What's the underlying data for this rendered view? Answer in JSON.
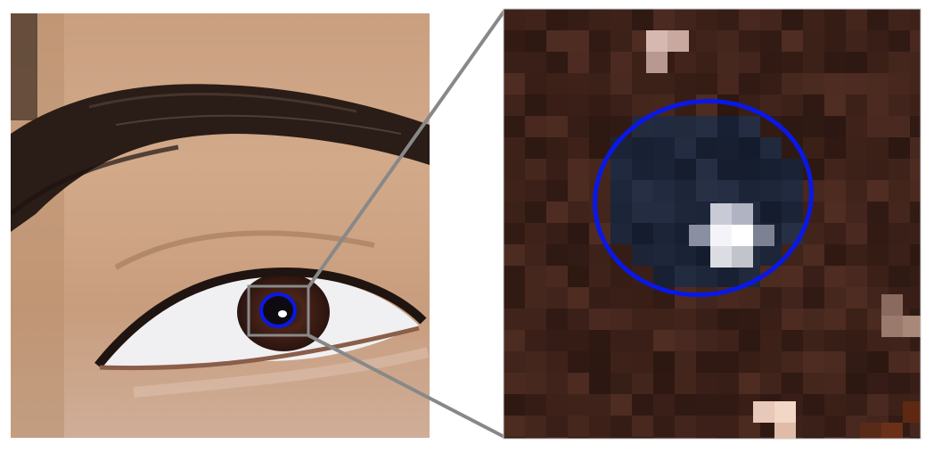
{
  "figure": {
    "panels": [
      {
        "id": "left",
        "content": "eye-photo"
      },
      {
        "id": "right",
        "content": "pixelated-magnified-iris"
      }
    ],
    "colors": {
      "background": "#ffffff",
      "connector": "#888888",
      "roi_box": "#8a8a8a",
      "highlight_circle": "#0a18e6",
      "skin": "#c49a7a",
      "brow": "#2a1c16",
      "iris": "#4a2418",
      "pupil": "#0d0a12",
      "sclera": "#f2f2f4",
      "specular": "#ffffff",
      "zoom_bg": "#3a1f17"
    }
  }
}
